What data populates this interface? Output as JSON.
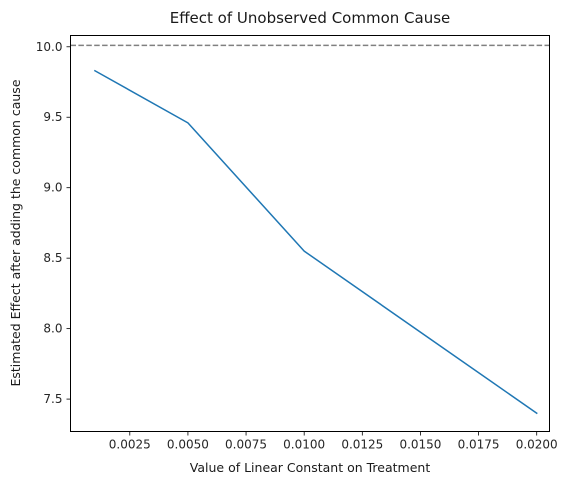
{
  "chart_data": {
    "type": "line",
    "title": "Effect of Unobserved Common Cause",
    "xlabel": "Value of Linear Constant on Treatment",
    "ylabel": "Estimated Effect after adding the common cause",
    "xlim": [
      -5e-05,
      0.02055
    ],
    "ylim": [
      7.27,
      10.08
    ],
    "xticks": [
      0.0025,
      0.005,
      0.0075,
      0.01,
      0.0125,
      0.015,
      0.0175,
      0.02
    ],
    "xtick_labels": [
      "0.0025",
      "0.0050",
      "0.0075",
      "0.0100",
      "0.0125",
      "0.0150",
      "0.0175",
      "0.0200"
    ],
    "yticks": [
      7.5,
      8.0,
      8.5,
      9.0,
      9.5,
      10.0
    ],
    "ytick_labels": [
      "7.5",
      "8.0",
      "8.5",
      "9.0",
      "9.5",
      "10.0"
    ],
    "grid": false,
    "series": [
      {
        "color": "#1f77b4",
        "x": [
          0.001,
          0.005,
          0.01,
          0.02
        ],
        "y": [
          9.83,
          9.46,
          8.55,
          7.4
        ]
      }
    ],
    "reference_line": {
      "orientation": "horizontal",
      "y": 10.01,
      "style": "dashed",
      "color": "#808080"
    }
  }
}
